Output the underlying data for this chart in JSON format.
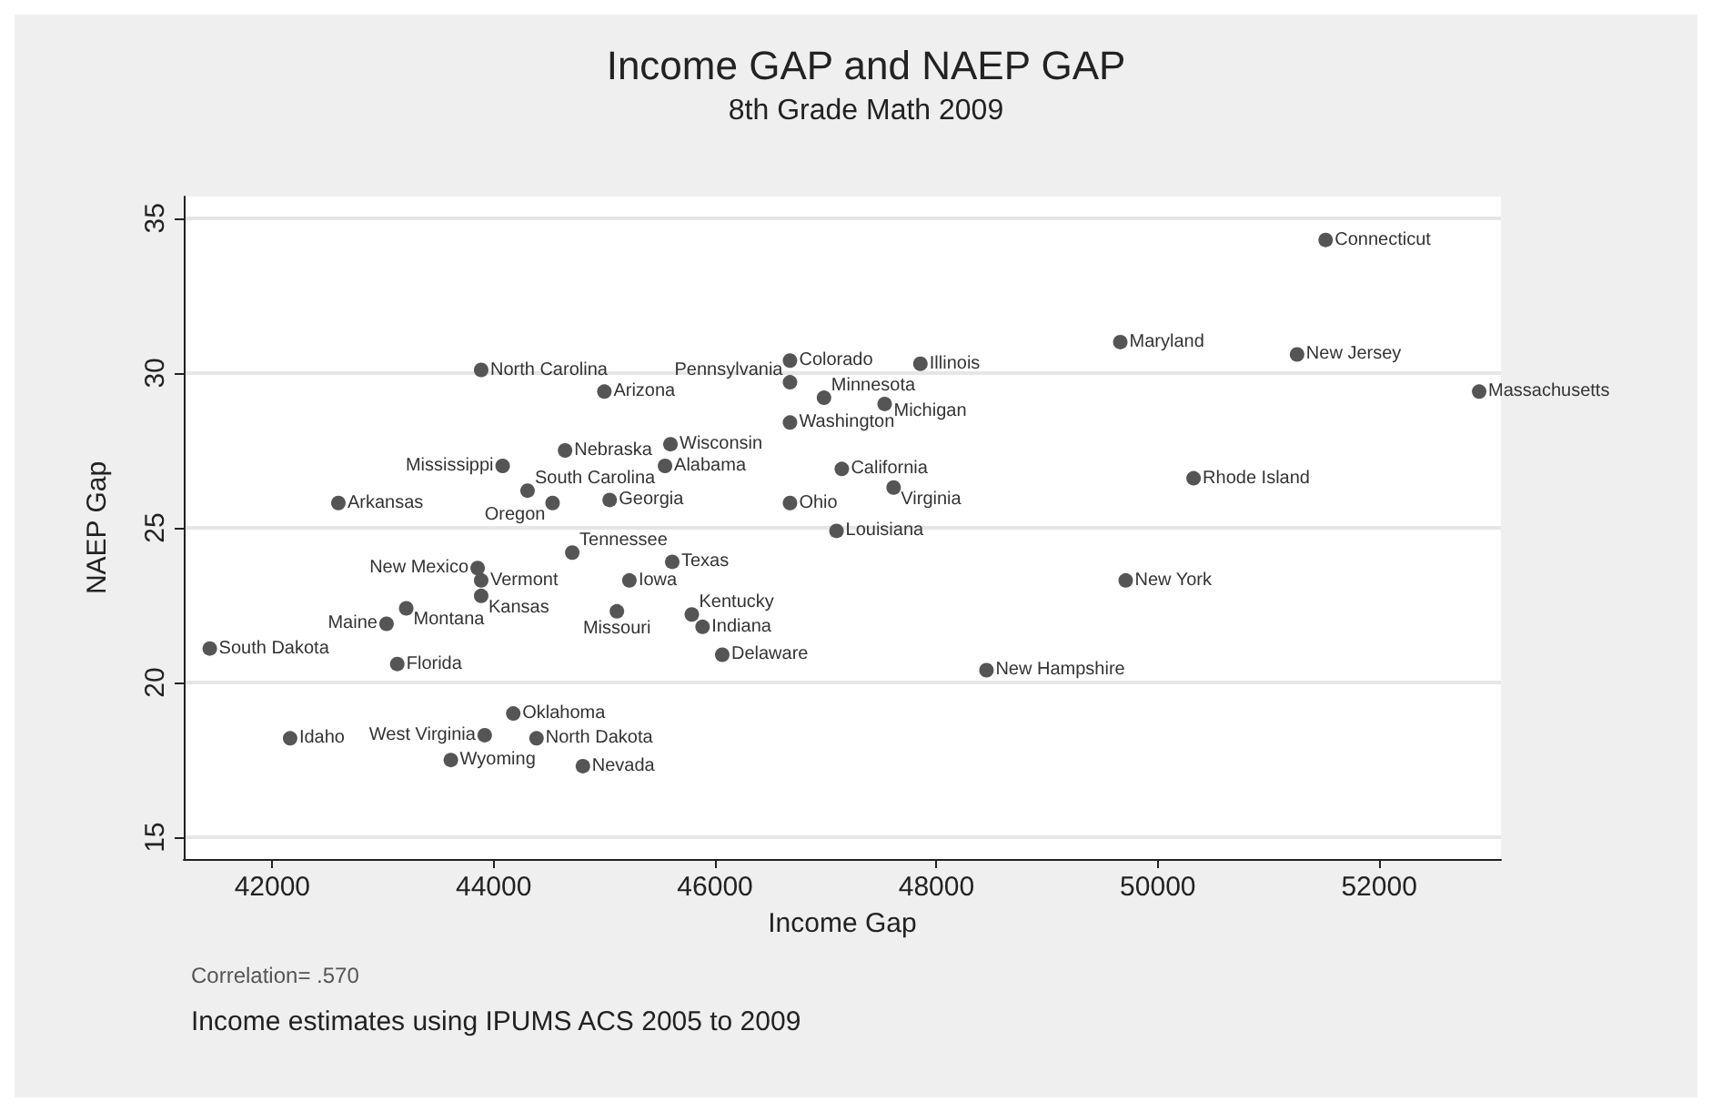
{
  "chart_data": {
    "type": "scatter",
    "title": "Income GAP and NAEP GAP",
    "subtitle": "8th Grade Math 2009",
    "xlabel": "Income Gap",
    "ylabel": "NAEP Gap",
    "x": [
      43887,
      45000,
      44645,
      45597,
      44081,
      45548,
      42597,
      44306,
      44532,
      45048,
      44710,
      43855,
      49661,
      46677,
      47855,
      46677,
      46984,
      47532,
      46677,
      47145,
      47613,
      46677,
      47097,
      45613,
      45226,
      45113,
      45790,
      45887,
      46065,
      48452,
      43887,
      43887,
      43210,
      43032,
      41435,
      43129,
      44177,
      42161,
      43919,
      44387,
      43613,
      44806,
      51516,
      51258,
      52903,
      50323,
      49710
    ],
    "values": [
      30.1,
      29.4,
      27.5,
      27.7,
      27.0,
      27.0,
      25.8,
      26.2,
      25.8,
      25.9,
      24.2,
      23.7,
      31.0,
      30.4,
      30.3,
      29.7,
      29.2,
      29.0,
      28.4,
      26.9,
      26.3,
      25.8,
      24.9,
      23.9,
      23.3,
      22.3,
      22.2,
      21.8,
      20.9,
      20.4,
      23.3,
      22.8,
      22.4,
      21.9,
      21.1,
      20.6,
      19.0,
      18.2,
      18.3,
      18.2,
      17.5,
      17.3,
      34.3,
      30.6,
      29.4,
      26.6,
      23.3
    ],
    "value_labels": [
      "North Carolina",
      "Arizona",
      "Nebraska",
      "Wisconsin",
      "Mississippi",
      "Alabama",
      "Arkansas",
      "South Carolina",
      "Oregon",
      "Georgia",
      "Tennessee",
      "New Mexico",
      "Maryland",
      "Colorado",
      "Illinois",
      "Pennsylvania",
      "Minnesota",
      "Michigan",
      "Washington",
      "California",
      "Virginia",
      "Ohio",
      "Louisiana",
      "Texas",
      "Iowa",
      "Missouri",
      "Kentucky",
      "Indiana",
      "Delaware",
      "New Hampshire",
      "Vermont",
      "Kansas",
      "Montana",
      "Maine",
      "South Dakota",
      "Florida",
      "Oklahoma",
      "Idaho",
      "West Virginia",
      "North Dakota",
      "Wyoming",
      "Nevada",
      "Connecticut",
      "New Jersey",
      "Massachusetts",
      "Rhode Island",
      "New York"
    ],
    "color": "#555555",
    "marker": "circle",
    "grid": "y",
    "xlim": [
      41200,
      53100
    ],
    "xticks": [
      42000,
      44000,
      46000,
      48000,
      50000,
      52000
    ],
    "ylim": [
      14.3,
      35.7
    ],
    "yticks": [
      15,
      20,
      25,
      30,
      35
    ],
    "annotations": [
      "Correlation= .570",
      "Income estimates using IPUMS ACS 2005 to 2009"
    ]
  }
}
